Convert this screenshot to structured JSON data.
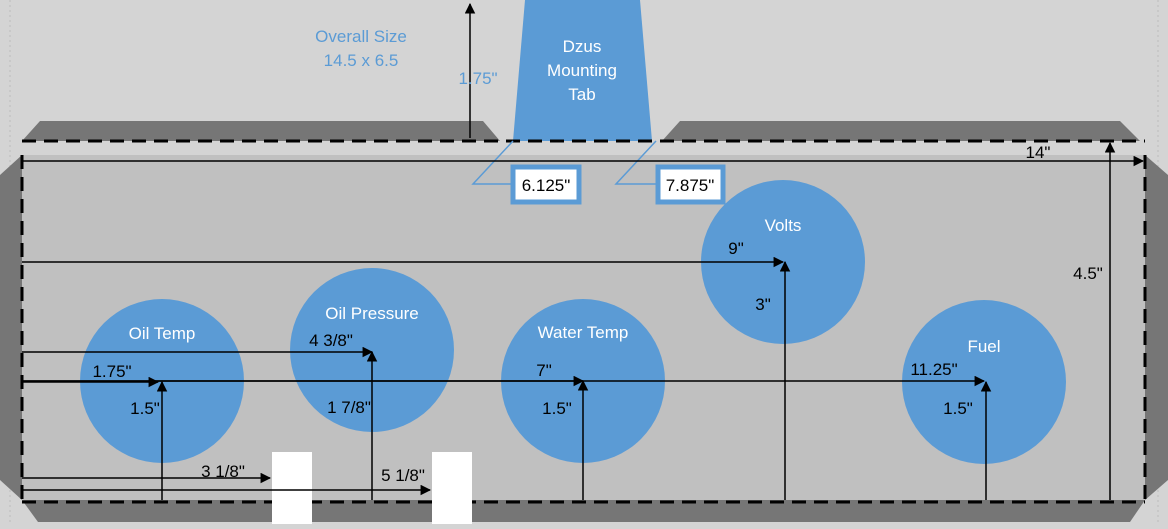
{
  "overall": {
    "line1": "Overall Size",
    "line2": "14.5 x 6.5"
  },
  "tab": {
    "line1": "Dzus",
    "line2": "Mounting",
    "line3": "Tab",
    "height": "1.75\""
  },
  "tab_offsets": {
    "left": "6.125\"",
    "right": "7.875\""
  },
  "panel": {
    "width": "14\"",
    "height": "4.5\""
  },
  "gauges": [
    {
      "name": "Oil Temp",
      "x_dim": "1.75\"",
      "y_dim": "1.5\""
    },
    {
      "name": "Oil Pressure",
      "x_dim": "4 3/8\"",
      "y_dim": "1 7/8\""
    },
    {
      "name": "Water Temp",
      "x_dim": "7\"",
      "y_dim": "1.5\""
    },
    {
      "name": "Volts",
      "x_dim": "9\"",
      "y_dim": "3\""
    },
    {
      "name": "Fuel",
      "x_dim": "11.25\"",
      "y_dim": "1.5\""
    }
  ],
  "slots": {
    "a_dim": "3 1/8\"",
    "b_dim": "5 1/8\""
  },
  "colors": {
    "background": "#d4d4d4",
    "panel": "#c0c0c0",
    "bevel": "#767676",
    "gauge": "#5b9bd5",
    "label": "#5b9bd5"
  }
}
